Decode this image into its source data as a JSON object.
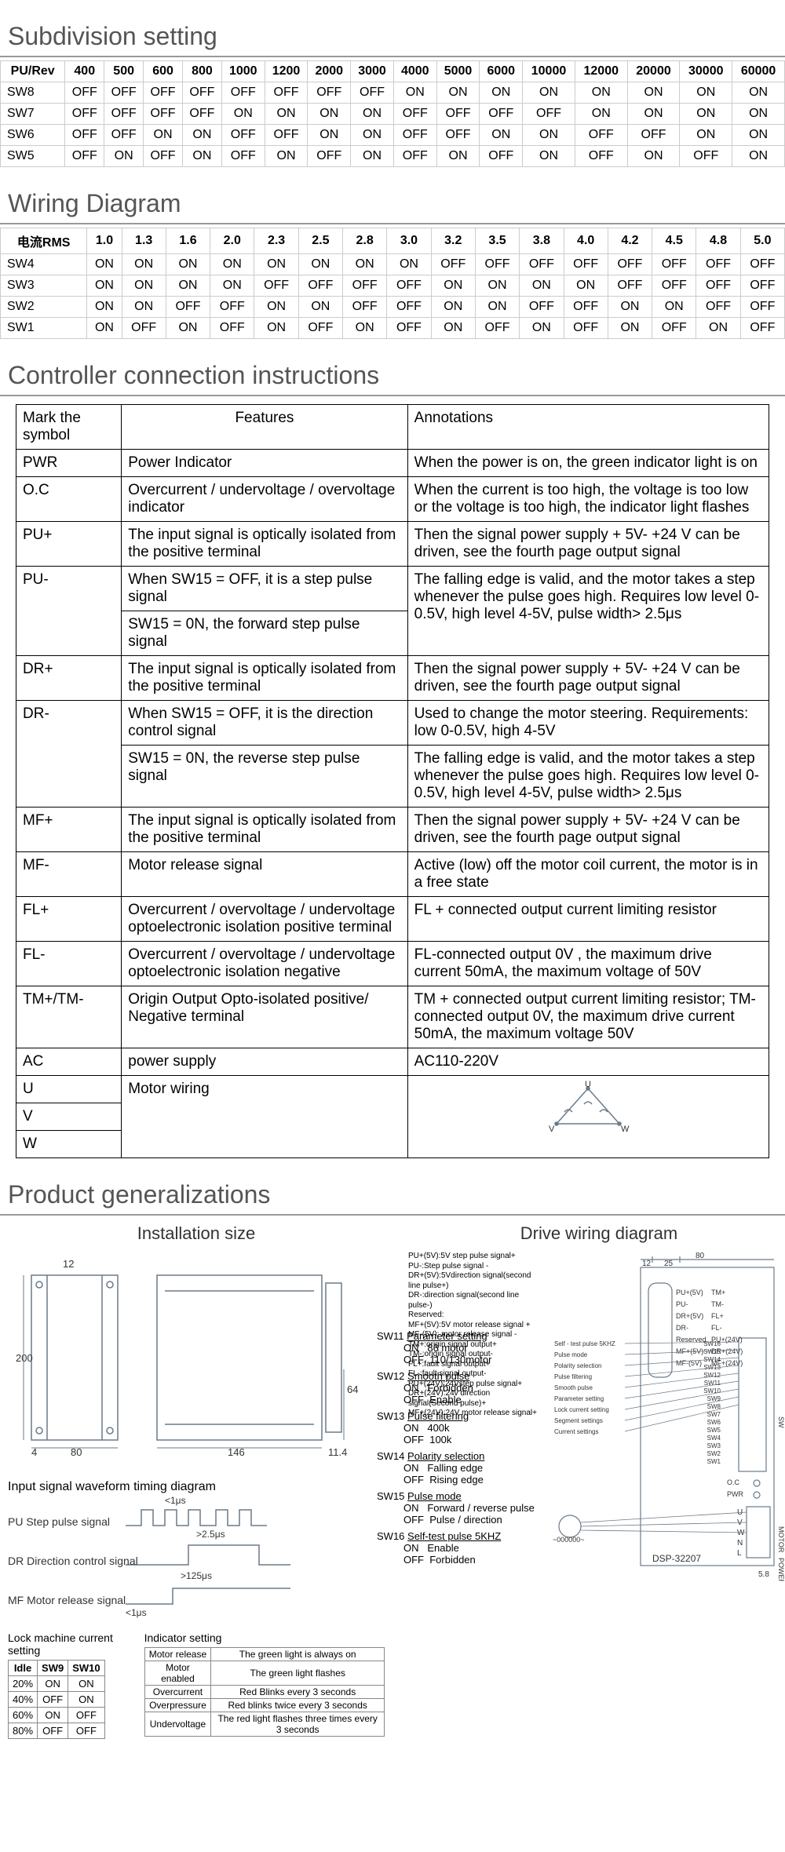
{
  "sections": {
    "subdivision": "Subdivision setting",
    "wiring": "Wiring Diagram",
    "controller": "Controller connection instructions",
    "generalizations": "Product generalizations"
  },
  "subdivision_table": {
    "header": [
      "PU/Rev",
      "400",
      "500",
      "600",
      "800",
      "1000",
      "1200",
      "2000",
      "3000",
      "4000",
      "5000",
      "6000",
      "10000",
      "12000",
      "20000",
      "30000",
      "60000"
    ],
    "rows": [
      [
        "SW8",
        "OFF",
        "OFF",
        "OFF",
        "OFF",
        "OFF",
        "OFF",
        "OFF",
        "OFF",
        "ON",
        "ON",
        "ON",
        "ON",
        "ON",
        "ON",
        "ON",
        "ON"
      ],
      [
        "SW7",
        "OFF",
        "OFF",
        "OFF",
        "OFF",
        "ON",
        "ON",
        "ON",
        "ON",
        "OFF",
        "OFF",
        "OFF",
        "OFF",
        "ON",
        "ON",
        "ON",
        "ON"
      ],
      [
        "SW6",
        "OFF",
        "OFF",
        "ON",
        "ON",
        "OFF",
        "OFF",
        "ON",
        "ON",
        "OFF",
        "OFF",
        "ON",
        "ON",
        "OFF",
        "OFF",
        "ON",
        "ON"
      ],
      [
        "SW5",
        "OFF",
        "ON",
        "OFF",
        "ON",
        "OFF",
        "ON",
        "OFF",
        "ON",
        "OFF",
        "ON",
        "OFF",
        "ON",
        "OFF",
        "ON",
        "OFF",
        "ON"
      ]
    ]
  },
  "wiring_table": {
    "header": [
      "电流RMS",
      "1.0",
      "1.3",
      "1.6",
      "2.0",
      "2.3",
      "2.5",
      "2.8",
      "3.0",
      "3.2",
      "3.5",
      "3.8",
      "4.0",
      "4.2",
      "4.5",
      "4.8",
      "5.0"
    ],
    "rows": [
      [
        "SW4",
        "ON",
        "ON",
        "ON",
        "ON",
        "ON",
        "ON",
        "ON",
        "ON",
        "OFF",
        "OFF",
        "OFF",
        "OFF",
        "OFF",
        "OFF",
        "OFF",
        "OFF"
      ],
      [
        "SW3",
        "ON",
        "ON",
        "ON",
        "ON",
        "OFF",
        "OFF",
        "OFF",
        "OFF",
        "ON",
        "ON",
        "ON",
        "ON",
        "OFF",
        "OFF",
        "OFF",
        "OFF"
      ],
      [
        "SW2",
        "ON",
        "ON",
        "OFF",
        "OFF",
        "ON",
        "ON",
        "OFF",
        "OFF",
        "ON",
        "ON",
        "OFF",
        "OFF",
        "ON",
        "ON",
        "OFF",
        "OFF"
      ],
      [
        "SW1",
        "ON",
        "OFF",
        "ON",
        "OFF",
        "ON",
        "OFF",
        "ON",
        "OFF",
        "ON",
        "OFF",
        "ON",
        "OFF",
        "ON",
        "OFF",
        "ON",
        "OFF"
      ]
    ]
  },
  "features_table": {
    "header": [
      "Mark the symbol",
      "Features",
      "Annotations"
    ],
    "rows": [
      {
        "sym": "PWR",
        "feat": "Power Indicator",
        "ann": "When the power is on, the green indicator light is on"
      },
      {
        "sym": "O.C",
        "feat": "Overcurrent / undervoltage / overvoltage indicator",
        "ann": "When the current is too high, the voltage is too low or the voltage is too high, the indicator light flashes"
      },
      {
        "sym": "PU+",
        "feat": "The input signal is optically isolated from the positive terminal",
        "ann": "Then the signal power supply + 5V- +24 V can be driven, see the fourth page output signal"
      },
      {
        "sym": "PU-",
        "feat": "When SW15 = OFF, it is a step pulse signal",
        "ann": "The falling edge is valid, and the motor takes a step whenever the pulse goes high. Requires low level 0-0.5V, high level 4-5V, pulse width> 2.5μs",
        "feat2": "SW15 = 0N, the forward step pulse signal"
      },
      {
        "sym": "DR+",
        "feat": "The input signal is optically isolated from the positive terminal",
        "ann": "Then the signal power supply + 5V- +24 V can be driven, see the fourth page output signal"
      },
      {
        "sym": "DR-",
        "feat": "When SW15 = OFF, it is the direction control signal",
        "ann": "Used to change the motor steering. Requirements: low 0-0.5V, high 4-5V",
        "feat2": "SW15 = 0N, the reverse step pulse signal",
        "ann2": "The falling edge is valid, and the motor takes a step whenever the pulse goes high. Requires low level 0-0.5V, high level 4-5V, pulse width> 2.5μs"
      },
      {
        "sym": "MF+",
        "feat": "The input signal is optically isolated from the positive terminal",
        "ann": "Then the signal power supply + 5V- +24 V can be driven, see the fourth page output signal"
      },
      {
        "sym": "MF-",
        "feat": "Motor release signal",
        "ann": "Active (low) off the motor coil current, the motor is in a free state"
      },
      {
        "sym": "FL+",
        "feat": "Overcurrent / overvoltage / undervoltage optoelectronic isolation positive terminal",
        "ann": "FL + connected output current limiting resistor"
      },
      {
        "sym": "FL-",
        "feat": "Overcurrent / overvoltage / undervoltage optoelectronic isolation negative",
        "ann": "FL-connected output 0V , the maximum drive current 50mA, the maximum voltage of 50V"
      },
      {
        "sym": "TM+/TM-",
        "feat": "Origin Output Opto-isolated positive/ Negative terminal",
        "ann": "TM + connected output current limiting resistor; TM-connected output 0V, the maximum drive current 50mA, the maximum voltage 50V"
      },
      {
        "sym": "AC",
        "feat": "power supply",
        "ann": "AC110-220V"
      },
      {
        "sym": "U",
        "feat": "Motor wiring",
        "ann": "__MOTOR_TRIANGLE__",
        "rowspan_sym": false
      },
      {
        "sym": "V",
        "feat": "",
        "ann": ""
      },
      {
        "sym": "W",
        "feat": "",
        "ann": ""
      }
    ]
  },
  "gen": {
    "install_title": "Installation size",
    "drive_title": "Drive wiring diagram",
    "timing_title": "Input signal waveform timing diagram",
    "pu_label": "PU Step pulse signal",
    "dr_label": "DR Direction control signal",
    "mf_label": "MF Motor release signal",
    "lock_title": "Lock machine current setting",
    "indicator_title": "Indicator setting",
    "t_1us": "<1μs",
    "t_25us": ">2.5μs",
    "t_125us": ">125μs",
    "dims": {
      "h200": "200",
      "w80": "80",
      "w4": "4",
      "w12": "12",
      "w146": "146",
      "w114": "11.4",
      "h64": "64",
      "dw80": "80",
      "d12": "12",
      "d25": "25",
      "d58": "5.8"
    }
  },
  "lock_table": {
    "header": [
      "Idle",
      "SW9",
      "SW10"
    ],
    "rows": [
      [
        "20%",
        "ON",
        "ON"
      ],
      [
        "40%",
        "OFF",
        "ON"
      ],
      [
        "60%",
        "ON",
        "OFF"
      ],
      [
        "80%",
        "OFF",
        "OFF"
      ]
    ]
  },
  "indicator_table": {
    "rows": [
      [
        "Motor release",
        "The green light is always on"
      ],
      [
        "Motor enabled",
        "The green light flashes"
      ],
      [
        "Overcurrent",
        "Red Blinks every 3 seconds"
      ],
      [
        "Overpressure",
        "Red blinks twice every 3 seconds"
      ],
      [
        "Undervoltage",
        "The red light flashes three times every 3 seconds"
      ]
    ]
  },
  "sw_settings": [
    {
      "sw": "SW11",
      "title": "Parameter setting",
      "on": "86 motor",
      "off": "110/130motor"
    },
    {
      "sw": "SW12",
      "title": "Smooth pulse",
      "on": "Forbidden",
      "off": "Enable"
    },
    {
      "sw": "SW13",
      "title": "Pulse filtering",
      "on": "400k",
      "off": "100k"
    },
    {
      "sw": "SW14",
      "title": "Polarity selection",
      "on": "Falling edge",
      "off": "Rising edge"
    },
    {
      "sw": "SW15",
      "title": "Pulse mode",
      "on": "Forward / reverse pulse",
      "off": "Pulse / direction"
    },
    {
      "sw": "SW16",
      "title": "Self-test pulse 5KHZ",
      "on": "Enable",
      "off": "Forbidden"
    }
  ],
  "drive_legend": {
    "left_signals": [
      "PU+(5V):5V step pulse signal+",
      "PU-:Step pulse signal -",
      "DR+(5V):5Vdirection signal(second line pulse+)",
      "DR-:direction signal(second line pulse-)",
      "Reserved:",
      "MF+(5V):5V motor release signal +",
      "MF-(5V): motor release signal -",
      "TM+:origin signal output+",
      "TM-:origin signal output-",
      "FL+:fault signal output+",
      "FL-:fault signal output-",
      "PU+(24V):24Vstep pulse signal+",
      "DR+(24V):24v direction signal(Second pulse)+",
      "MF+(24V):24V motor release signal+"
    ],
    "mid_labels": [
      "Self - test pulse 5KHZ",
      "Pulse mode",
      "Polarity selection",
      "Pulse filtering",
      "Smooth pulse",
      "Parameter setting",
      "Lock current setting",
      "Segment settings",
      "Current settings"
    ],
    "conn_left": [
      "PU+(5V)",
      "PU-",
      "DR+(5V)",
      "DR-",
      "Reserved",
      "MF+(5V)",
      "MF-(5V)"
    ],
    "conn_right": [
      "TM+",
      "TM-",
      "FL+",
      "FL-",
      "PU+(24V)",
      "DR+(24V)",
      "MF+(24V)"
    ],
    "sw_list": [
      "SW16",
      "SW15",
      "SW14",
      "SW13",
      "SW12",
      "SW11",
      "SW10",
      "SW9",
      "SW8",
      "SW7",
      "SW6",
      "SW5",
      "SW4",
      "SW3",
      "SW2",
      "SW1"
    ],
    "oc": "O.C",
    "pwr": "PWR",
    "motor_terms": [
      "U",
      "V",
      "W",
      "N",
      "L"
    ],
    "motor_label": "MOTOR",
    "power_label": "POWER",
    "sw_label": "SW",
    "model": "DSP-32207",
    "motor_icon": "~000000~"
  }
}
